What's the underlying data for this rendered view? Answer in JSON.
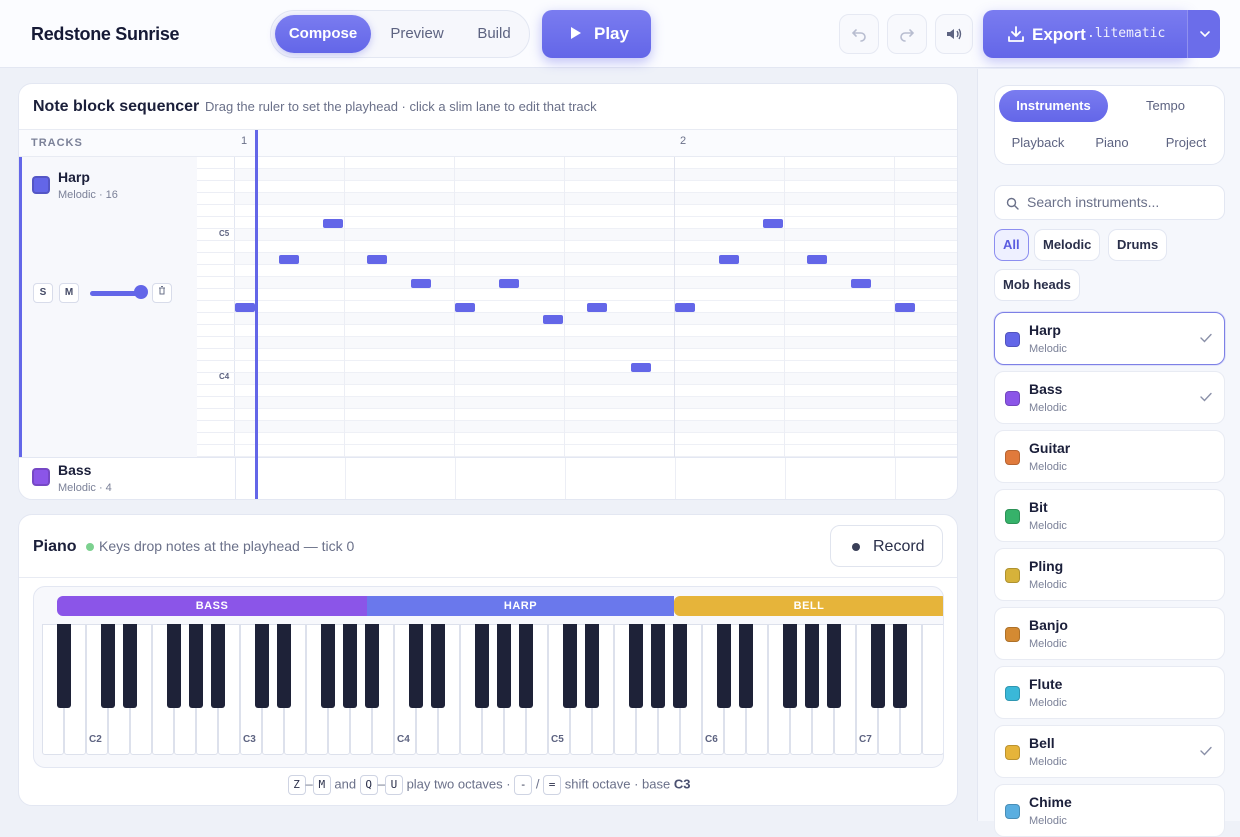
{
  "app": {
    "title": "Redstone Sunrise"
  },
  "modes": [
    "Compose",
    "Preview",
    "Build"
  ],
  "toolbar": {
    "play_label": "Play",
    "export_label": "Export",
    "export_ext": ".litematic"
  },
  "sequencer": {
    "title": "Note block sequencer",
    "hint": "Drag the ruler to set the playhead · click a slim lane to edit that track",
    "tracks_label": "TRACKS",
    "bars": [
      "1",
      "2"
    ],
    "lane_labels": [
      "C5",
      "C4"
    ],
    "solo_label": "S",
    "mute_label": "M",
    "volume": 0.9,
    "tracks": [
      {
        "name": "Harp",
        "sub": "Melodic · 16",
        "color": "#6366e8"
      },
      {
        "name": "Bass",
        "sub": "Melodic · 4",
        "color": "#8b55e8"
      }
    ]
  },
  "piano": {
    "title": "Piano",
    "hint": "Keys drop notes at the playhead — tick 0",
    "record_label": "Record",
    "zones": [
      {
        "label": "BASS",
        "color": "#8b55e8"
      },
      {
        "label": "HARP",
        "color": "#6a78ec"
      },
      {
        "label": "BELL",
        "color": "#e6b43a"
      }
    ],
    "octave_labels": [
      "C2",
      "C3",
      "C4",
      "C5",
      "C6",
      "C7"
    ],
    "shortcuts": {
      "k1": "Z",
      "k2": "M",
      "and": "and",
      "k3": "Q",
      "k4": "U",
      "t1": "play two octaves ·",
      "k5": "-",
      "slash": "/",
      "k6": "=",
      "t2": "shift octave · base",
      "base": "C3"
    }
  },
  "sidebar": {
    "tabs": [
      "Instruments",
      "Tempo",
      "Playback",
      "Piano",
      "Project"
    ],
    "search_placeholder": "Search instruments...",
    "chips": [
      "All",
      "Melodic",
      "Drums",
      "Mob heads"
    ],
    "instruments": [
      {
        "name": "Harp",
        "type": "Melodic",
        "color": "#6366e8",
        "checked": true
      },
      {
        "name": "Bass",
        "type": "Melodic",
        "color": "#8b55e8",
        "checked": true
      },
      {
        "name": "Guitar",
        "type": "Melodic",
        "color": "#e07a3c",
        "checked": false
      },
      {
        "name": "Bit",
        "type": "Melodic",
        "color": "#36b26a",
        "checked": false
      },
      {
        "name": "Pling",
        "type": "Melodic",
        "color": "#d6b23a",
        "checked": false
      },
      {
        "name": "Banjo",
        "type": "Melodic",
        "color": "#d48a32",
        "checked": false
      },
      {
        "name": "Flute",
        "type": "Melodic",
        "color": "#3ab8d8",
        "checked": false
      },
      {
        "name": "Bell",
        "type": "Melodic",
        "color": "#e6b43a",
        "checked": true
      },
      {
        "name": "Chime",
        "type": "Melodic",
        "color": "#5aaee0",
        "checked": false
      }
    ]
  }
}
